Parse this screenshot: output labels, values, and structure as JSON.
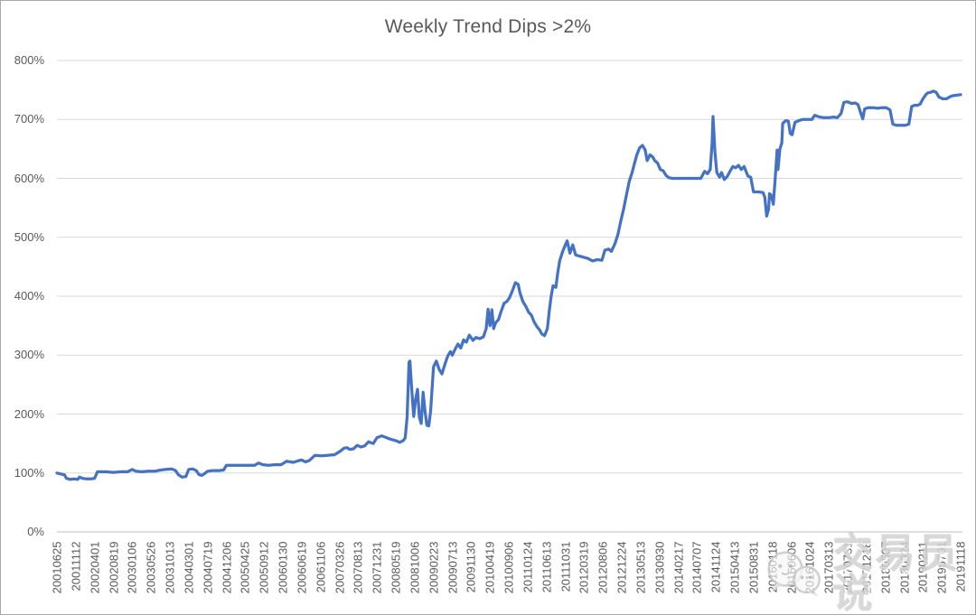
{
  "watermark": {
    "text": "交易员说",
    "icon": "wechat-chat-bubbles-icon"
  },
  "colors": {
    "line": "#4472C4",
    "gridline": "#D9D9D9",
    "axis_line": "#BFBFBF",
    "label_text": "#595959",
    "title_text": "#595959",
    "watermark_text": "#D2D2D2"
  },
  "chart_data": {
    "type": "line",
    "title": "Weekly Trend Dips >2%",
    "xlabel": "",
    "ylabel": "",
    "legend": "none",
    "grid": "horizontal",
    "y_axis": {
      "min": 0,
      "max": 800,
      "tick_step": 100,
      "tick_labels": [
        "0%",
        "100%",
        "200%",
        "300%",
        "400%",
        "500%",
        "600%",
        "700%",
        "800%"
      ]
    },
    "x_axis": {
      "unit": "week start date YYYYMMDD",
      "total_weeks": 960,
      "tick_interval_weeks": 20,
      "tick_labels": [
        "20010625",
        "20011112",
        "20020401",
        "20020819",
        "20030106",
        "20030526",
        "20031013",
        "20040301",
        "20040719",
        "20041206",
        "20050425",
        "20050912",
        "20060130",
        "20060619",
        "20061106",
        "20070326",
        "20070813",
        "20071231",
        "20080519",
        "20081006",
        "20090223",
        "20090713",
        "20091130",
        "20100419",
        "20100906",
        "20110124",
        "20110613",
        "20111031",
        "20120319",
        "20120806",
        "20121224",
        "20130513",
        "20130930",
        "20140217",
        "20140707",
        "20141124",
        "20150413",
        "20150831",
        "20160118",
        "20160606",
        "20161024",
        "20170313",
        "20170731",
        "20171218",
        "20180507",
        "20180924",
        "20190211",
        "20190701",
        "20191118"
      ]
    },
    "series": [
      {
        "name": "Weekly Trend Dips >2%",
        "color": "#4472C4",
        "points_format": "[week_index, cumulative_return_percent]",
        "points": [
          [
            0,
            100
          ],
          [
            5,
            98
          ],
          [
            8,
            97
          ],
          [
            10,
            91
          ],
          [
            14,
            89
          ],
          [
            18,
            90
          ],
          [
            22,
            89
          ],
          [
            24,
            93
          ],
          [
            27,
            91
          ],
          [
            31,
            90
          ],
          [
            36,
            90
          ],
          [
            40,
            91
          ],
          [
            43,
            102
          ],
          [
            52,
            102
          ],
          [
            60,
            101
          ],
          [
            68,
            102
          ],
          [
            75,
            102
          ],
          [
            80,
            106
          ],
          [
            84,
            103
          ],
          [
            90,
            102
          ],
          [
            97,
            103
          ],
          [
            104,
            103
          ],
          [
            110,
            105
          ],
          [
            116,
            106
          ],
          [
            122,
            107
          ],
          [
            126,
            104
          ],
          [
            129,
            97
          ],
          [
            133,
            93
          ],
          [
            137,
            94
          ],
          [
            140,
            106
          ],
          [
            144,
            107
          ],
          [
            148,
            104
          ],
          [
            151,
            97
          ],
          [
            154,
            96
          ],
          [
            157,
            99
          ],
          [
            160,
            103
          ],
          [
            165,
            104
          ],
          [
            172,
            104
          ],
          [
            177,
            105
          ],
          [
            180,
            113
          ],
          [
            210,
            113
          ],
          [
            214,
            117
          ],
          [
            219,
            114
          ],
          [
            225,
            113
          ],
          [
            231,
            114
          ],
          [
            238,
            114
          ],
          [
            244,
            120
          ],
          [
            251,
            118
          ],
          [
            257,
            121
          ],
          [
            260,
            122
          ],
          [
            264,
            119
          ],
          [
            268,
            121
          ],
          [
            274,
            130
          ],
          [
            281,
            129
          ],
          [
            287,
            130
          ],
          [
            295,
            131
          ],
          [
            301,
            137
          ],
          [
            305,
            142
          ],
          [
            308,
            143
          ],
          [
            311,
            140
          ],
          [
            315,
            141
          ],
          [
            319,
            147
          ],
          [
            323,
            144
          ],
          [
            327,
            146
          ],
          [
            331,
            153
          ],
          [
            336,
            150
          ],
          [
            340,
            160
          ],
          [
            345,
            163
          ],
          [
            350,
            160
          ],
          [
            355,
            157
          ],
          [
            360,
            155
          ],
          [
            364,
            152
          ],
          [
            368,
            155
          ],
          [
            370,
            160
          ],
          [
            372,
            195
          ],
          [
            374,
            288
          ],
          [
            375,
            290
          ],
          [
            377,
            240
          ],
          [
            379,
            196
          ],
          [
            381,
            225
          ],
          [
            383,
            242
          ],
          [
            385,
            195
          ],
          [
            387,
            184
          ],
          [
            389,
            237
          ],
          [
            391,
            205
          ],
          [
            393,
            181
          ],
          [
            395,
            180
          ],
          [
            397,
            205
          ],
          [
            400,
            280
          ],
          [
            403,
            290
          ],
          [
            406,
            276
          ],
          [
            409,
            268
          ],
          [
            412,
            284
          ],
          [
            415,
            298
          ],
          [
            418,
            306
          ],
          [
            420,
            300
          ],
          [
            423,
            310
          ],
          [
            426,
            319
          ],
          [
            429,
            312
          ],
          [
            432,
            326
          ],
          [
            435,
            322
          ],
          [
            438,
            334
          ],
          [
            442,
            325
          ],
          [
            445,
            330
          ],
          [
            449,
            328
          ],
          [
            453,
            331
          ],
          [
            456,
            345
          ],
          [
            458,
            378
          ],
          [
            460,
            350
          ],
          [
            462,
            377
          ],
          [
            464,
            345
          ],
          [
            466,
            355
          ],
          [
            469,
            360
          ],
          [
            472,
            375
          ],
          [
            475,
            388
          ],
          [
            478,
            391
          ],
          [
            481,
            398
          ],
          [
            484,
            410
          ],
          [
            487,
            423
          ],
          [
            490,
            420
          ],
          [
            492,
            405
          ],
          [
            495,
            391
          ],
          [
            498,
            383
          ],
          [
            501,
            373
          ],
          [
            504,
            368
          ],
          [
            507,
            356
          ],
          [
            510,
            348
          ],
          [
            513,
            342
          ],
          [
            515,
            336
          ],
          [
            518,
            333
          ],
          [
            521,
            345
          ],
          [
            523,
            375
          ],
          [
            525,
            400
          ],
          [
            527,
            418
          ],
          [
            530,
            415
          ],
          [
            532,
            440
          ],
          [
            534,
            460
          ],
          [
            537,
            475
          ],
          [
            539,
            483
          ],
          [
            542,
            494
          ],
          [
            545,
            473
          ],
          [
            548,
            487
          ],
          [
            551,
            470
          ],
          [
            555,
            468
          ],
          [
            560,
            466
          ],
          [
            564,
            464
          ],
          [
            569,
            460
          ],
          [
            574,
            462
          ],
          [
            579,
            461
          ],
          [
            582,
            478
          ],
          [
            586,
            480
          ],
          [
            589,
            476
          ],
          [
            593,
            490
          ],
          [
            596,
            505
          ],
          [
            599,
            528
          ],
          [
            602,
            548
          ],
          [
            605,
            572
          ],
          [
            608,
            595
          ],
          [
            611,
            610
          ],
          [
            613,
            622
          ],
          [
            616,
            640
          ],
          [
            619,
            652
          ],
          [
            622,
            656
          ],
          [
            625,
            648
          ],
          [
            627,
            630
          ],
          [
            630,
            640
          ],
          [
            633,
            636
          ],
          [
            635,
            630
          ],
          [
            638,
            626
          ],
          [
            641,
            615
          ],
          [
            644,
            613
          ],
          [
            647,
            605
          ],
          [
            650,
            601
          ],
          [
            654,
            600
          ],
          [
            665,
            600
          ],
          [
            676,
            600
          ],
          [
            684,
            600
          ],
          [
            688,
            612
          ],
          [
            691,
            608
          ],
          [
            694,
            615
          ],
          [
            696,
            660
          ],
          [
            697,
            705
          ],
          [
            699,
            645
          ],
          [
            701,
            610
          ],
          [
            704,
            602
          ],
          [
            706,
            610
          ],
          [
            709,
            598
          ],
          [
            712,
            603
          ],
          [
            715,
            612
          ],
          [
            718,
            620
          ],
          [
            721,
            618
          ],
          [
            724,
            622
          ],
          [
            727,
            615
          ],
          [
            730,
            620
          ],
          [
            732,
            612
          ],
          [
            734,
            604
          ],
          [
            737,
            602
          ],
          [
            740,
            577
          ],
          [
            745,
            577
          ],
          [
            750,
            576
          ],
          [
            752,
            568
          ],
          [
            754,
            536
          ],
          [
            756,
            548
          ],
          [
            757,
            574
          ],
          [
            759,
            571
          ],
          [
            761,
            556
          ],
          [
            763,
            600
          ],
          [
            765,
            648
          ],
          [
            766,
            615
          ],
          [
            768,
            650
          ],
          [
            770,
            660
          ],
          [
            771,
            693
          ],
          [
            774,
            698
          ],
          [
            777,
            697
          ],
          [
            779,
            676
          ],
          [
            781,
            674
          ],
          [
            784,
            695
          ],
          [
            788,
            698
          ],
          [
            792,
            700
          ],
          [
            797,
            700
          ],
          [
            802,
            700
          ],
          [
            805,
            707
          ],
          [
            810,
            704
          ],
          [
            815,
            703
          ],
          [
            820,
            703
          ],
          [
            825,
            704
          ],
          [
            829,
            703
          ],
          [
            833,
            710
          ],
          [
            836,
            729
          ],
          [
            840,
            730
          ],
          [
            844,
            727
          ],
          [
            848,
            728
          ],
          [
            851,
            725
          ],
          [
            854,
            710
          ],
          [
            856,
            701
          ],
          [
            858,
            718
          ],
          [
            862,
            720
          ],
          [
            867,
            720
          ],
          [
            872,
            719
          ],
          [
            876,
            720
          ],
          [
            881,
            720
          ],
          [
            885,
            716
          ],
          [
            888,
            692
          ],
          [
            892,
            690
          ],
          [
            897,
            690
          ],
          [
            901,
            690
          ],
          [
            905,
            692
          ],
          [
            908,
            722
          ],
          [
            911,
            724
          ],
          [
            914,
            724
          ],
          [
            917,
            726
          ],
          [
            920,
            735
          ],
          [
            923,
            742
          ],
          [
            925,
            745
          ],
          [
            928,
            746
          ],
          [
            931,
            748
          ],
          [
            934,
            746
          ],
          [
            937,
            738
          ],
          [
            941,
            735
          ],
          [
            945,
            735
          ],
          [
            948,
            738
          ],
          [
            951,
            740
          ],
          [
            955,
            741
          ],
          [
            960,
            742
          ]
        ]
      }
    ]
  }
}
